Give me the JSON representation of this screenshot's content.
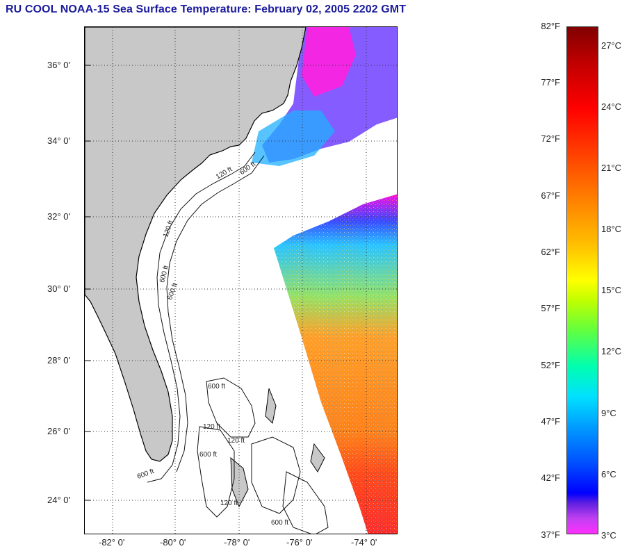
{
  "title": "RU COOL  NOAA-15  Sea Surface Temperature:  February 02, 2005 2202 GMT",
  "map": {
    "lat_labels": [
      "36° 0'",
      "34° 0'",
      "32° 0'",
      "30° 0'",
      "28° 0'",
      "26° 0'",
      "24° 0'"
    ],
    "lon_labels": [
      "-82° 0'",
      "-80° 0'",
      "-78° 0'",
      "-76° 0'",
      "-74° 0'"
    ],
    "contour_labels": [
      "120 ft",
      "600 ft",
      "120 ft",
      "600 ft",
      "600 ft",
      "600 ft",
      "120 ft",
      "600 ft",
      "120 ft",
      "120 ft",
      "600 ft",
      "600 ft"
    ],
    "land_color": "#c8c8c8",
    "lat_range": [
      23.0,
      37.1
    ],
    "lon_range": [
      -83.0,
      -73.0
    ]
  },
  "colorbar": {
    "fahrenheit": [
      "82°F",
      "77°F",
      "72°F",
      "67°F",
      "62°F",
      "57°F",
      "52°F",
      "47°F",
      "42°F",
      "37°F"
    ],
    "celsius": [
      "27°C",
      "24°C",
      "21°C",
      "18°C",
      "15°C",
      "12°C",
      "9°C",
      "6°C",
      "3°C"
    ]
  }
}
